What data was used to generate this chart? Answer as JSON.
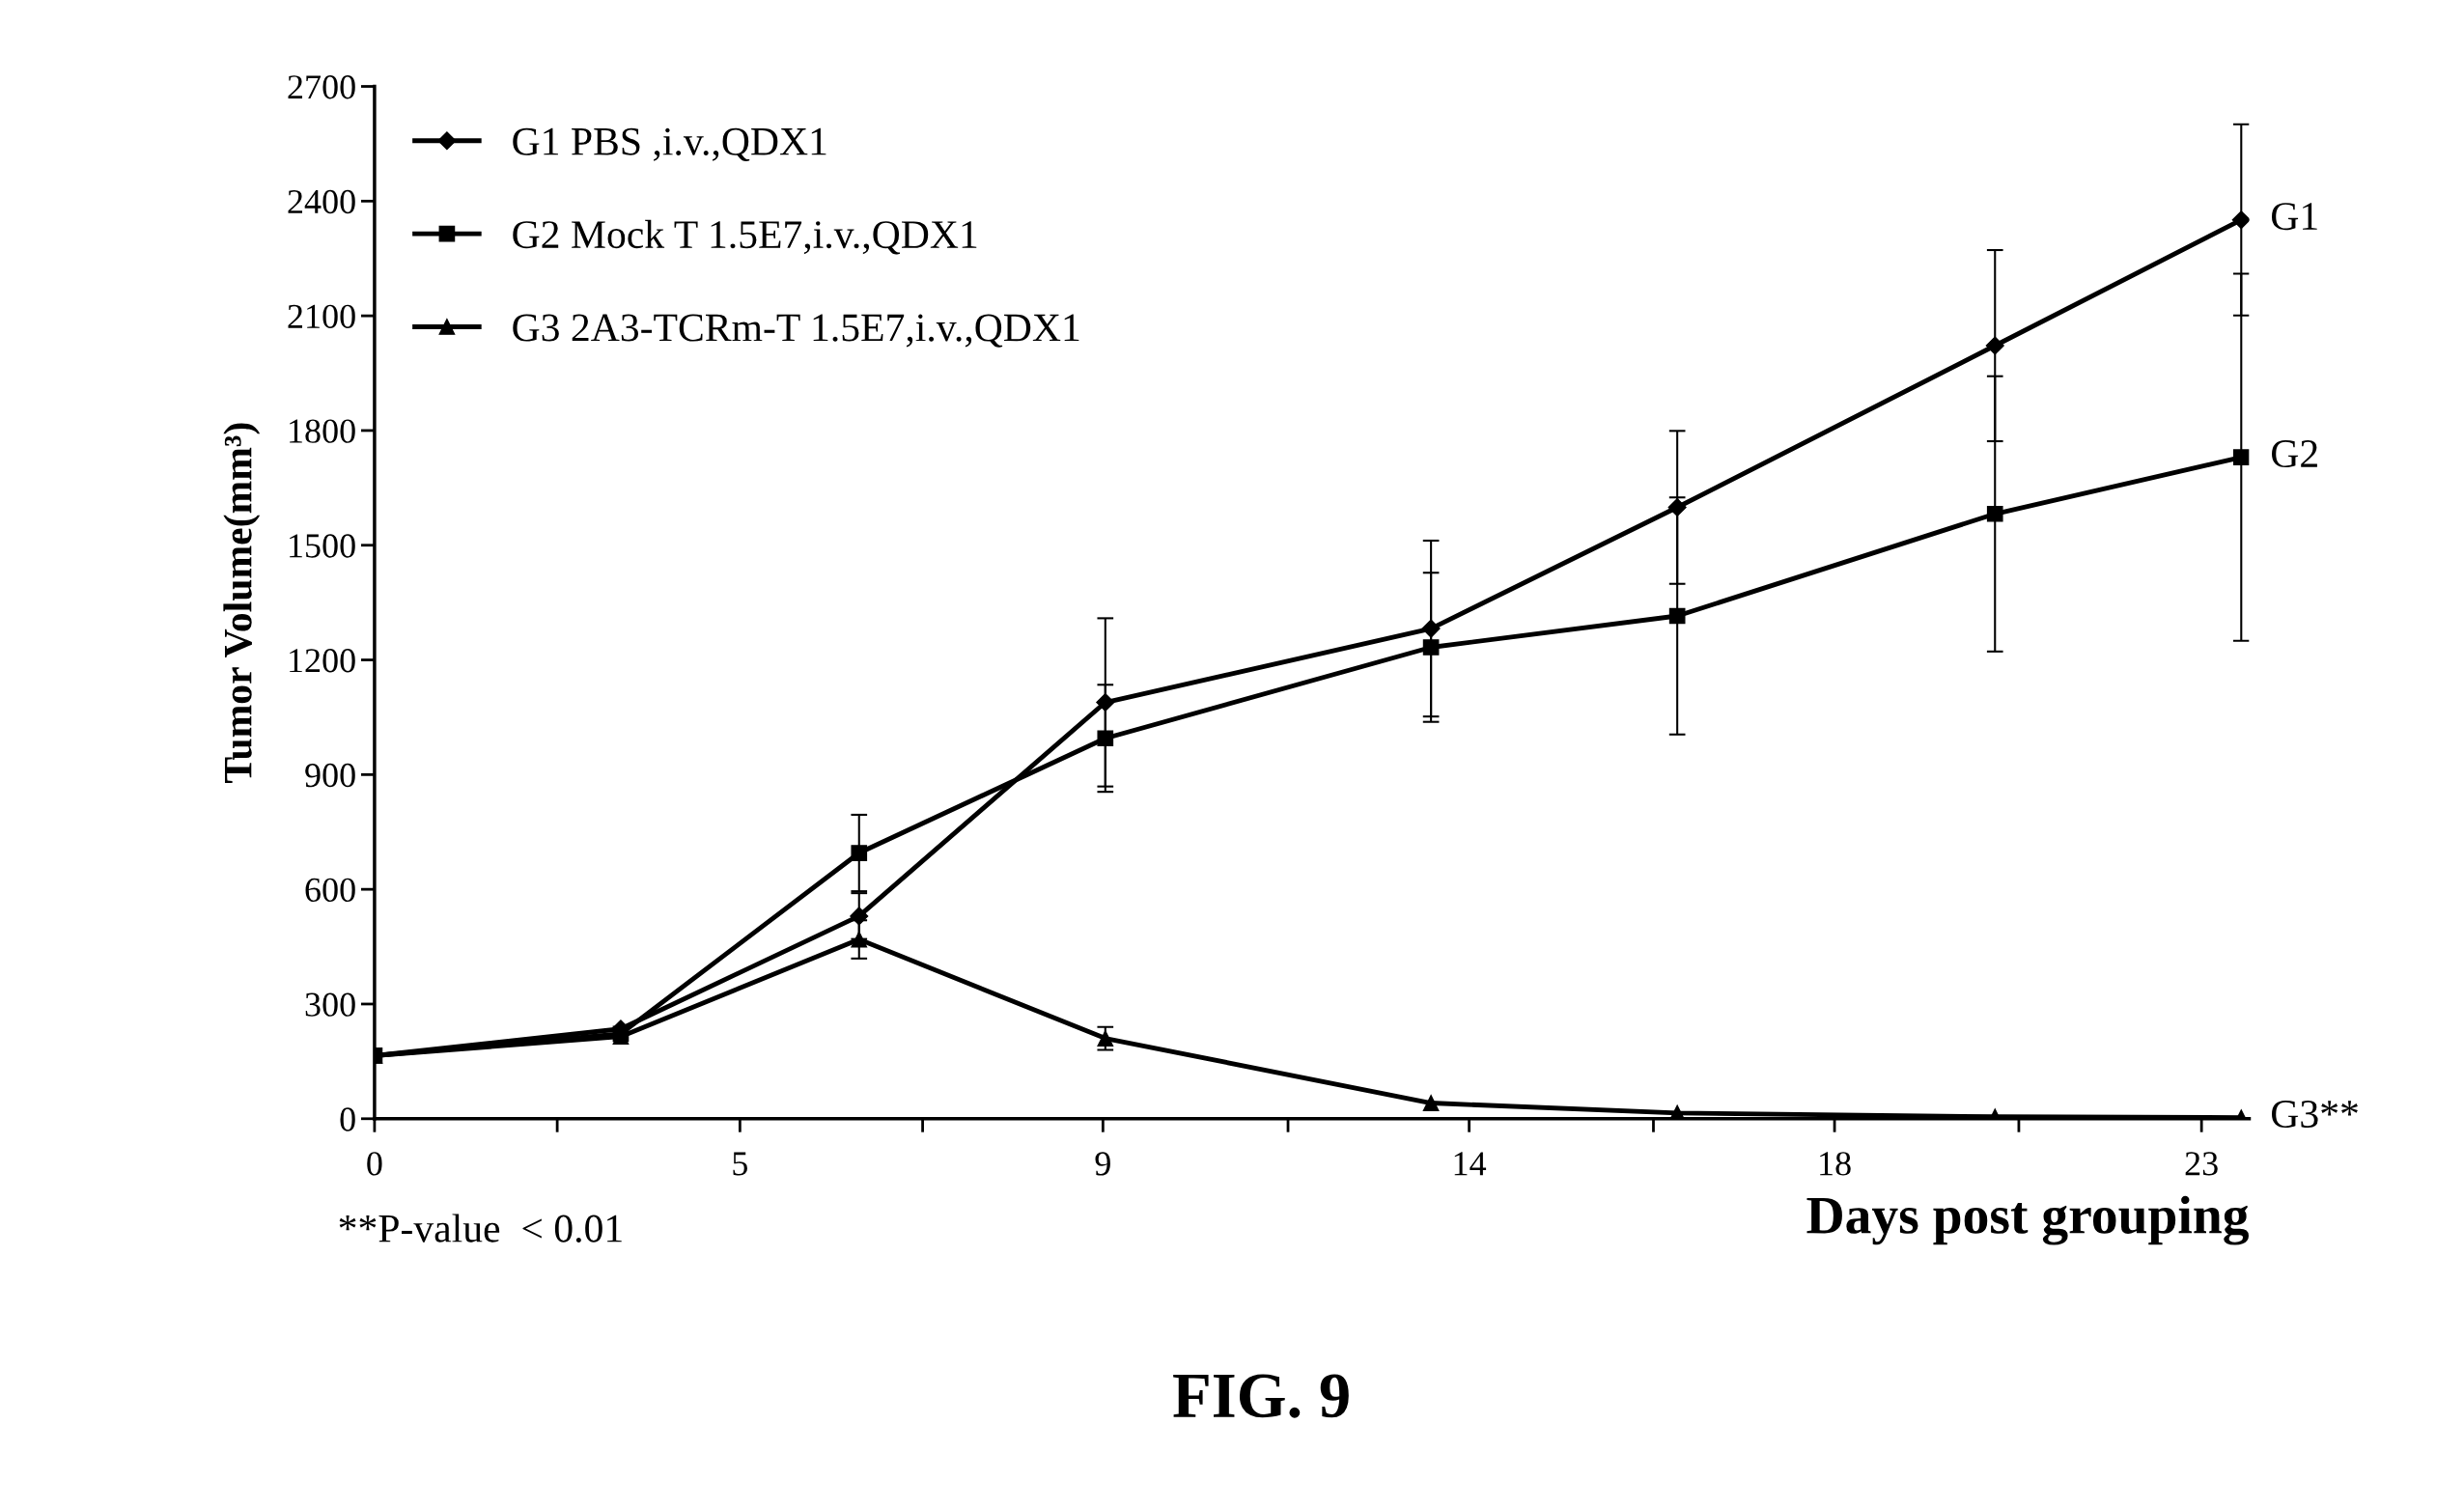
{
  "chart_data": {
    "type": "line",
    "ylabel": "Tumor Volume(mm³)",
    "xlabel": "Days post grouping",
    "x": [
      0,
      3.1,
      6.1,
      9.2,
      13.3,
      16.4,
      20.4,
      23.5
    ],
    "series": [
      {
        "name": "G1 PBS ,i.v.,QDX1",
        "color": "#000000",
        "marker": "diamond",
        "values": [
          165,
          235,
          530,
          1089,
          1282,
          1599,
          2022,
          2351
        ],
        "errors": [
          null,
          null,
          60,
          220,
          230,
          200,
          250,
          250
        ]
      },
      {
        "name": "G2 Mock T 1.5E7,i.v.,QDX1",
        "color": "#000000",
        "marker": "square",
        "values": [
          165,
          222,
          695,
          995,
          1233,
          1315,
          1582,
          1730
        ],
        "errors": [
          null,
          null,
          100,
          140,
          195,
          310,
          360,
          480
        ]
      },
      {
        "name": "G3 2A3-TCRm-T 1.5E7,i.v.,QDX1",
        "color": "#000000",
        "marker": "triangle",
        "values": [
          165,
          215,
          469,
          210,
          41,
          15,
          5,
          3
        ],
        "errors": [
          null,
          null,
          50,
          30,
          null,
          null,
          null,
          null
        ]
      }
    ],
    "xlim": [
      0,
      23.6
    ],
    "ylim": [
      0,
      2700
    ],
    "xticks": [
      0,
      {
        "value": 2.3,
        "label": null
      },
      {
        "value": 4.6,
        "label": "5"
      },
      {
        "value": 6.9,
        "label": null
      },
      {
        "value": 9.17,
        "label": "9"
      },
      {
        "value": 11.5,
        "label": null
      },
      {
        "value": 13.78,
        "label": "14"
      },
      {
        "value": 16.1,
        "label": null
      },
      {
        "value": 18.38,
        "label": "18"
      },
      {
        "value": 20.7,
        "label": null
      },
      23
    ],
    "yticks": [
      0,
      300,
      600,
      900,
      1200,
      1500,
      1800,
      2100,
      2400,
      2700
    ],
    "grid": false,
    "legend": "top left",
    "line_style": "solid",
    "annotations": [
      "G1",
      "G2",
      "G3**",
      "**P-value  < 0.01",
      "FIG. 9"
    ]
  }
}
